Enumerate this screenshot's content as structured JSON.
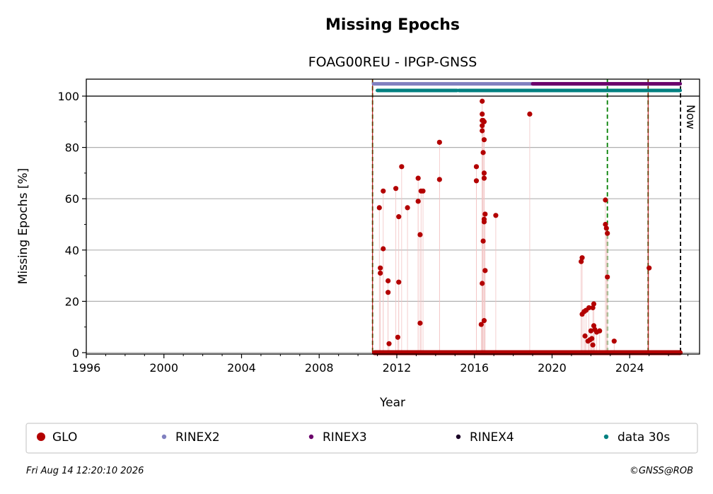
{
  "chart_data": {
    "type": "scatter",
    "title": "Missing Epochs",
    "subtitle": "FOAG00REU - IPGP-GNSS",
    "xlabel": "Year",
    "ylabel": "Missing Epochs [%]",
    "xlim": [
      1996,
      2027.6
    ],
    "ylim": [
      0,
      107
    ],
    "x_ticks": [
      1996,
      2000,
      2004,
      2008,
      2012,
      2016,
      2020,
      2024
    ],
    "y_ticks": [
      0,
      20,
      40,
      60,
      80,
      100
    ],
    "grid": "horizontal",
    "now_label": "Now",
    "now_x": 2026.62,
    "vertical_lines": [
      {
        "x": 2010.75,
        "color": "#008000",
        "style": "dashed"
      },
      {
        "x": 2010.75,
        "color": "#b00000",
        "style": "solid"
      },
      {
        "x": 2022.85,
        "color": "#008000",
        "style": "dashed"
      },
      {
        "x": 2024.95,
        "color": "#008000",
        "style": "dashed"
      },
      {
        "x": 2024.95,
        "color": "#b00000",
        "style": "solid"
      }
    ],
    "series": [
      {
        "name": "GLO",
        "color": "#b30000",
        "baseline_span": [
          2010.85,
          2026.6
        ],
        "points": [
          [
            2011.1,
            56.5
          ],
          [
            2011.15,
            33
          ],
          [
            2011.15,
            31
          ],
          [
            2011.3,
            63
          ],
          [
            2011.3,
            40.5
          ],
          [
            2011.55,
            28
          ],
          [
            2011.55,
            23.5
          ],
          [
            2011.6,
            3.5
          ],
          [
            2011.95,
            64
          ],
          [
            2012.05,
            6
          ],
          [
            2012.1,
            53
          ],
          [
            2012.1,
            27.5
          ],
          [
            2012.25,
            72.5
          ],
          [
            2012.55,
            56.5
          ],
          [
            2013.1,
            68
          ],
          [
            2013.1,
            59
          ],
          [
            2013.2,
            46
          ],
          [
            2013.25,
            63
          ],
          [
            2013.35,
            63
          ],
          [
            2013.2,
            11.5
          ],
          [
            2014.2,
            82
          ],
          [
            2014.2,
            67.5
          ],
          [
            2016.1,
            72.5
          ],
          [
            2016.1,
            67
          ],
          [
            2016.35,
            11
          ],
          [
            2016.4,
            98
          ],
          [
            2016.4,
            93
          ],
          [
            2016.4,
            90.5
          ],
          [
            2016.4,
            88.5
          ],
          [
            2016.4,
            86.5
          ],
          [
            2016.45,
            90.5
          ],
          [
            2016.5,
            90
          ],
          [
            2016.5,
            83
          ],
          [
            2016.45,
            78
          ],
          [
            2016.5,
            70
          ],
          [
            2016.5,
            68
          ],
          [
            2016.55,
            54
          ],
          [
            2016.5,
            52
          ],
          [
            2016.5,
            51
          ],
          [
            2016.45,
            43.5
          ],
          [
            2016.4,
            27
          ],
          [
            2016.55,
            32
          ],
          [
            2016.5,
            12.5
          ],
          [
            2017.1,
            53.5
          ],
          [
            2018.85,
            93
          ],
          [
            2021.5,
            35.5
          ],
          [
            2021.55,
            37
          ],
          [
            2021.55,
            15
          ],
          [
            2021.65,
            16
          ],
          [
            2021.7,
            6.5
          ],
          [
            2021.75,
            16.5
          ],
          [
            2021.85,
            4.5
          ],
          [
            2021.9,
            17.5
          ],
          [
            2021.95,
            5
          ],
          [
            2022.0,
            8.5
          ],
          [
            2022.05,
            5.5
          ],
          [
            2022.1,
            17.5
          ],
          [
            2022.1,
            3
          ],
          [
            2022.15,
            10.5
          ],
          [
            2022.15,
            19
          ],
          [
            2022.2,
            9
          ],
          [
            2022.3,
            8
          ],
          [
            2022.45,
            8.5
          ],
          [
            2022.75,
            59.5
          ],
          [
            2022.75,
            50
          ],
          [
            2022.8,
            48.5
          ],
          [
            2022.85,
            46.5
          ],
          [
            2022.85,
            29.5
          ],
          [
            2023.2,
            4.5
          ],
          [
            2025.0,
            33
          ],
          [
            2026.55,
            0
          ]
        ]
      },
      {
        "name": "RINEX2",
        "color": "#8080c0",
        "bands": [
          {
            "x0": 2010.8,
            "x1": 2019.0,
            "y": 104.8
          },
          {
            "x0": 2019.0,
            "x1": 2026.6,
            "y": 104.8
          }
        ]
      },
      {
        "name": "RINEX3",
        "color": "#6b006b",
        "bands": [
          {
            "x0": 2019.0,
            "x1": 2026.6,
            "y": 104.8
          }
        ]
      },
      {
        "name": "RINEX4",
        "color": "#1a0026",
        "bands": []
      },
      {
        "name": "data 30s",
        "color": "#008080",
        "bands": [
          {
            "x0": 2011.0,
            "x1": 2015.1,
            "y": 102.2
          },
          {
            "x0": 2015.2,
            "x1": 2026.6,
            "y": 102.2
          }
        ]
      }
    ]
  },
  "legend": {
    "items": [
      {
        "label": "GLO",
        "color": "#b30000"
      },
      {
        "label": "RINEX2",
        "color": "#8080c0"
      },
      {
        "label": "RINEX3",
        "color": "#6b006b"
      },
      {
        "label": "RINEX4",
        "color": "#1a0026"
      },
      {
        "label": "data 30s",
        "color": "#008080"
      }
    ]
  },
  "footer": {
    "timestamp": "Fri Aug 14 12:20:10 2026",
    "copyright": "©GNSS@ROB"
  }
}
